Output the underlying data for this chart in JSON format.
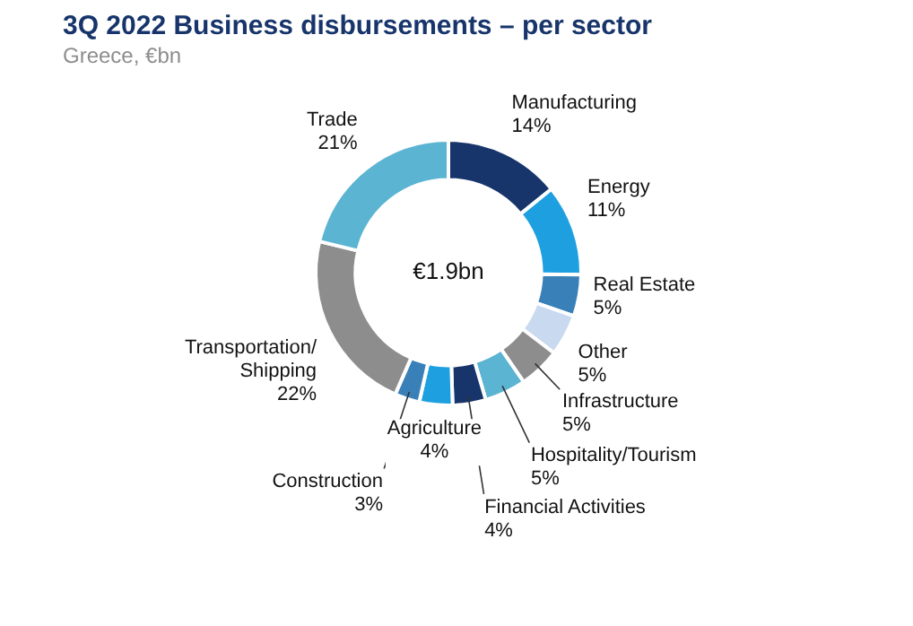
{
  "chart_data": {
    "type": "donut",
    "title": "3Q 2022 Business disbursements – per sector",
    "subtitle": "Greece, €bn",
    "categories": [
      "Manufacturing",
      "Energy",
      "Real Estate",
      "Other",
      "Infrastructure",
      "Hospitality/Tourism",
      "Financial Activities",
      "Agriculture",
      "Construction",
      "Transportation/Shipping",
      "Trade"
    ],
    "values": [
      14,
      11,
      5,
      5,
      5,
      5,
      4,
      4,
      3,
      22,
      21
    ],
    "value_labels": [
      "14%",
      "11%",
      "5%",
      "5%",
      "5%",
      "5%",
      "4%",
      "4%",
      "3%",
      "22%",
      "21%"
    ],
    "colors": [
      "#17356b",
      "#1ea0e0",
      "#3a80b8",
      "#c9d9f0",
      "#8d8d8d",
      "#5ab4d2",
      "#17356b",
      "#1ea0e0",
      "#3a80b8",
      "#8d8d8d",
      "#5ab4d2"
    ],
    "annotations": [
      "€1.9bn"
    ],
    "legend": false
  }
}
